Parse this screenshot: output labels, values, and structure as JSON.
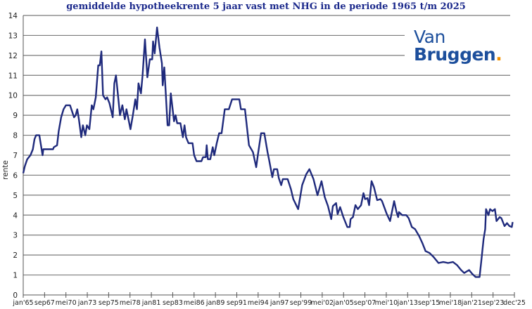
{
  "chart_data": {
    "type": "line",
    "title": "gemiddelde hypotheekrente 5 jaar vast met NHG in de periode 1965 t/m 2025",
    "xlabel": "",
    "ylabel": "rente",
    "xlim": [
      1965.0,
      2025.92
    ],
    "ylim": [
      0,
      14
    ],
    "yticks": [
      0,
      1,
      2,
      3,
      4,
      5,
      6,
      7,
      8,
      9,
      10,
      11,
      12,
      13,
      14
    ],
    "xtick_labels": [
      "jan'65",
      "sep67",
      "mei70",
      "jan73",
      "sep75",
      "mei78",
      "jan81",
      "sep83",
      "mei86",
      "jan89",
      "sep91",
      "mei94",
      "jan97",
      "sep'99",
      "mei'02",
      "jan'05",
      "sep'07",
      "mei'10",
      "jan'13",
      "sep'15",
      "mei'18",
      "jan'21",
      "sep'23",
      "dec'25"
    ],
    "grid": "horizontal",
    "line_color": "#1f2a7c",
    "series": [
      {
        "name": "hypotheekrente 5 jaar vast NHG",
        "x": [
          1965.0,
          1965.2,
          1965.5,
          1965.9,
          1966.2,
          1966.4,
          1966.6,
          1967.0,
          1967.4,
          1967.5,
          1968.7,
          1968.8,
          1969.2,
          1969.4,
          1969.7,
          1970.0,
          1970.3,
          1970.8,
          1971.3,
          1971.5,
          1971.7,
          1971.9,
          1972.2,
          1972.4,
          1972.7,
          1972.9,
          1973.2,
          1973.5,
          1973.7,
          1974.0,
          1974.3,
          1974.5,
          1974.7,
          1974.9,
          1975.2,
          1975.4,
          1975.7,
          1976.1,
          1976.3,
          1976.5,
          1976.7,
          1977.0,
          1977.3,
          1977.6,
          1977.8,
          1978.3,
          1978.6,
          1978.9,
          1979.1,
          1979.3,
          1979.6,
          1979.8,
          1980.1,
          1980.4,
          1980.7,
          1981.0,
          1981.1,
          1981.3,
          1981.6,
          1981.9,
          1982.2,
          1982.3,
          1982.5,
          1982.9,
          1983.1,
          1983.3,
          1983.5,
          1983.7,
          1983.9,
          1984.1,
          1984.5,
          1984.8,
          1985.0,
          1985.2,
          1985.5,
          1986.0,
          1986.2,
          1986.5,
          1987.1,
          1987.3,
          1987.65,
          1987.75,
          1987.9,
          1988.2,
          1988.5,
          1988.7,
          1989.0,
          1989.3,
          1989.6,
          1990.0,
          1990.5,
          1990.9,
          1991.8,
          1992.0,
          1992.5,
          1993.0,
          1993.5,
          1993.9,
          1994.1,
          1994.5,
          1994.9,
          1995.3,
          1995.5,
          1995.9,
          1996.1,
          1996.5,
          1996.7,
          1997.0,
          1997.2,
          1997.8,
          1998.2,
          1998.5,
          1999.1,
          1999.6,
          2000.1,
          2000.5,
          2001.0,
          2001.5,
          2002.0,
          2002.4,
          2002.8,
          2003.2,
          2003.4,
          2003.8,
          2004.0,
          2004.3,
          2004.7,
          2005.2,
          2005.5,
          2005.6,
          2005.9,
          2006.2,
          2006.5,
          2006.9,
          2007.2,
          2007.4,
          2007.7,
          2007.9,
          2008.2,
          2008.5,
          2008.9,
          2009.3,
          2009.5,
          2010.1,
          2010.5,
          2011.0,
          2011.3,
          2011.5,
          2011.6,
          2012.0,
          2012.5,
          2012.8,
          2013.2,
          2013.6,
          2014.1,
          2014.5,
          2014.9,
          2015.4,
          2015.9,
          2016.5,
          2017.1,
          2017.7,
          2018.3,
          2018.8,
          2019.3,
          2019.7,
          2020.3,
          2020.7,
          2021.1,
          2021.6,
          2021.8,
          2022.1,
          2022.3,
          2022.4,
          2022.7,
          2022.9,
          2023.2,
          2023.5,
          2023.7,
          2024.1,
          2024.3,
          2024.7,
          2025.0,
          2025.3,
          2025.6,
          2025.7
        ],
        "y": [
          6.1,
          6.45,
          6.8,
          7.0,
          7.3,
          7.8,
          8.0,
          8.0,
          7.0,
          7.3,
          7.3,
          7.4,
          7.5,
          8.2,
          8.9,
          9.3,
          9.5,
          9.5,
          8.9,
          9.0,
          9.3,
          8.8,
          7.9,
          8.5,
          8.0,
          8.5,
          8.3,
          9.5,
          9.3,
          9.9,
          11.5,
          11.5,
          12.2,
          10.0,
          9.8,
          9.9,
          9.6,
          8.9,
          10.6,
          11.0,
          10.2,
          9.0,
          9.5,
          8.8,
          9.3,
          8.3,
          9.0,
          9.8,
          9.3,
          10.6,
          10.1,
          11.0,
          12.8,
          10.9,
          11.8,
          11.8,
          12.7,
          12.1,
          13.4,
          12.4,
          11.6,
          10.5,
          11.4,
          8.5,
          8.5,
          10.1,
          9.4,
          8.7,
          9.0,
          8.6,
          8.6,
          7.9,
          8.5,
          7.9,
          7.6,
          7.6,
          7.0,
          6.7,
          6.7,
          6.9,
          6.9,
          7.5,
          6.8,
          6.8,
          7.4,
          7.0,
          7.6,
          8.1,
          8.1,
          9.3,
          9.3,
          9.8,
          9.8,
          9.3,
          9.3,
          7.5,
          7.15,
          6.4,
          7.0,
          8.1,
          8.1,
          7.15,
          6.75,
          5.9,
          6.3,
          6.3,
          5.85,
          5.5,
          5.8,
          5.8,
          5.3,
          4.8,
          4.3,
          5.5,
          6.05,
          6.3,
          5.8,
          5.0,
          5.7,
          4.9,
          4.45,
          3.8,
          4.45,
          4.6,
          4.05,
          4.4,
          3.9,
          3.4,
          3.4,
          3.8,
          3.9,
          4.5,
          4.3,
          4.5,
          5.1,
          4.8,
          4.85,
          4.5,
          5.7,
          5.4,
          4.75,
          4.8,
          4.7,
          4.05,
          3.7,
          4.7,
          4.15,
          3.9,
          4.15,
          4.0,
          4.0,
          3.85,
          3.4,
          3.3,
          2.95,
          2.6,
          2.2,
          2.1,
          1.9,
          1.6,
          1.65,
          1.6,
          1.65,
          1.5,
          1.25,
          1.1,
          1.25,
          1.05,
          0.9,
          0.9,
          1.65,
          2.8,
          3.3,
          4.3,
          4.0,
          4.3,
          4.2,
          4.3,
          3.7,
          3.9,
          3.85,
          3.45,
          3.6,
          3.45,
          3.4,
          3.65
        ]
      }
    ]
  },
  "logo": {
    "line1": "Van",
    "line2": "Bruggen",
    "dot": ".",
    "colors": {
      "text": "#1d4f9c",
      "dot": "#f29100"
    }
  }
}
